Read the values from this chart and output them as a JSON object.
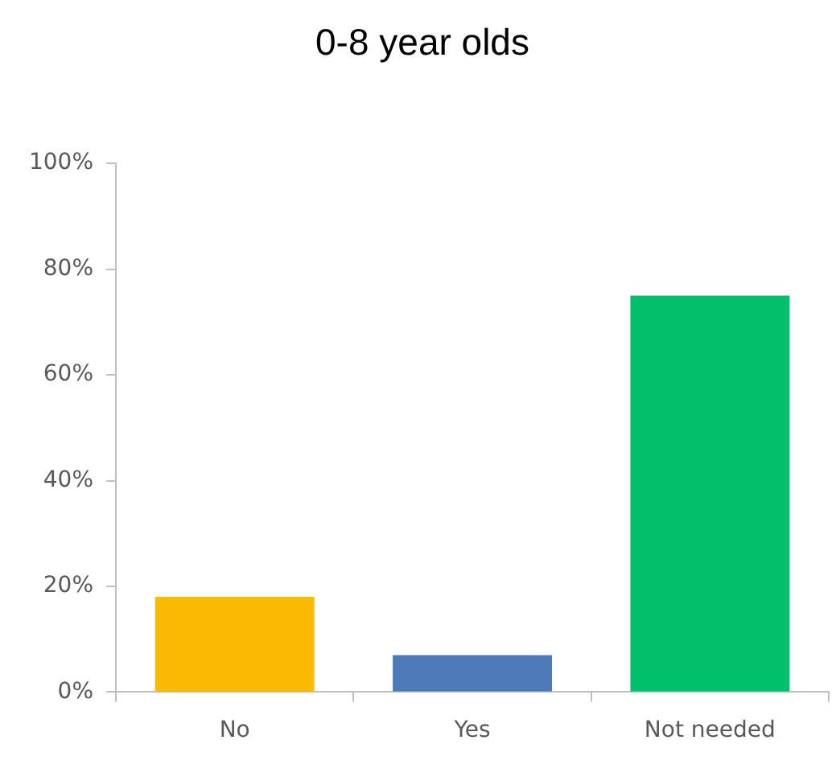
{
  "chart_data": {
    "type": "bar",
    "title": "0-8 year olds",
    "categories": [
      "No",
      "Yes",
      "Not needed"
    ],
    "values": [
      18,
      7,
      75
    ],
    "colors": [
      "#f9bc00",
      "#4a7ab8",
      "#00c06c"
    ],
    "ylim": [
      0,
      100
    ],
    "yticks": [
      {
        "value": 0,
        "label": "0%"
      },
      {
        "value": 20,
        "label": "20%"
      },
      {
        "value": 40,
        "label": "40%"
      },
      {
        "value": 60,
        "label": "60%"
      },
      {
        "value": 80,
        "label": "80%"
      },
      {
        "value": 100,
        "label": "100%"
      }
    ],
    "grid": false,
    "legend": false
  }
}
